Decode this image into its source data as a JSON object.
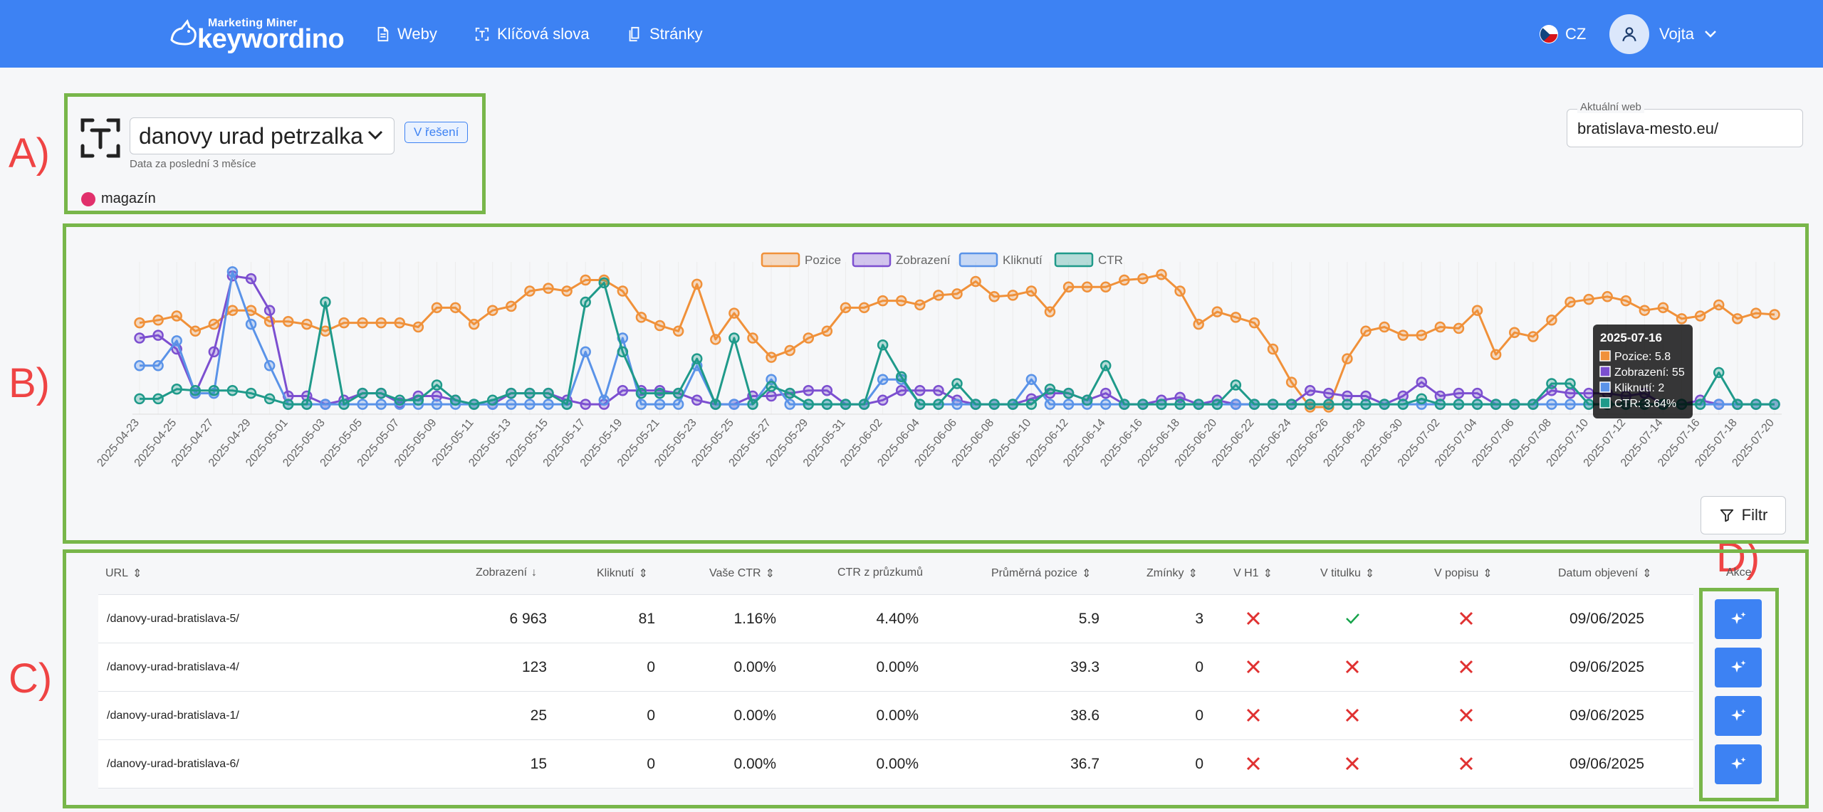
{
  "header": {
    "logo_small": "Marketing Miner",
    "logo_big": "keywordino",
    "nav": [
      {
        "label": "Weby",
        "icon": "document-icon"
      },
      {
        "label": "Klíčová slova",
        "icon": "keyword-icon"
      },
      {
        "label": "Stránky",
        "icon": "pages-icon"
      }
    ],
    "language": "CZ",
    "user": "Vojta"
  },
  "annotations": {
    "a": "A)",
    "b": "B)",
    "c": "C)",
    "d": "D)"
  },
  "keyword": {
    "selected": "danovy urad petrzalka",
    "status_badge": "V řešení",
    "note": "Data za poslední 3 měsíce",
    "tag": "magazín",
    "tag_color": "#e1306c"
  },
  "current_web": {
    "label": "Aktuální web",
    "value": "bratislava-mesto.eu/"
  },
  "filter_label": "Filtr",
  "chart_data": {
    "type": "line",
    "x": [
      "2025-04-23",
      "2025-04-24",
      "2025-04-25",
      "2025-04-26",
      "2025-04-27",
      "2025-04-28",
      "2025-04-29",
      "2025-04-30",
      "2025-05-01",
      "2025-05-02",
      "2025-05-03",
      "2025-05-04",
      "2025-05-05",
      "2025-05-06",
      "2025-05-07",
      "2025-05-08",
      "2025-05-09",
      "2025-05-10",
      "2025-05-11",
      "2025-05-12",
      "2025-05-13",
      "2025-05-14",
      "2025-05-15",
      "2025-05-16",
      "2025-05-17",
      "2025-05-18",
      "2025-05-19",
      "2025-05-20",
      "2025-05-21",
      "2025-05-22",
      "2025-05-23",
      "2025-05-24",
      "2025-05-25",
      "2025-05-26",
      "2025-05-27",
      "2025-05-28",
      "2025-05-29",
      "2025-05-30",
      "2025-05-31",
      "2025-06-01",
      "2025-06-02",
      "2025-06-03",
      "2025-06-04",
      "2025-06-05",
      "2025-06-06",
      "2025-06-07",
      "2025-06-08",
      "2025-06-09",
      "2025-06-10",
      "2025-06-11",
      "2025-06-12",
      "2025-06-13",
      "2025-06-14",
      "2025-06-15",
      "2025-06-16",
      "2025-06-17",
      "2025-06-18",
      "2025-06-19",
      "2025-06-20",
      "2025-06-21",
      "2025-06-22",
      "2025-06-23",
      "2025-06-24",
      "2025-06-25",
      "2025-06-26",
      "2025-06-27",
      "2025-06-28",
      "2025-06-29",
      "2025-06-30",
      "2025-07-01",
      "2025-07-02",
      "2025-07-03",
      "2025-07-04",
      "2025-07-05",
      "2025-07-06",
      "2025-07-07",
      "2025-07-08",
      "2025-07-09",
      "2025-07-10",
      "2025-07-11",
      "2025-07-12",
      "2025-07-13",
      "2025-07-14",
      "2025-07-15",
      "2025-07-16",
      "2025-07-17",
      "2025-07-18",
      "2025-07-19",
      "2025-07-20"
    ],
    "x_tick_labels": [
      "2025-04-23",
      "2025-04-25",
      "2025-04-27",
      "2025-04-29",
      "2025-05-01",
      "2025-05-03",
      "2025-05-05",
      "2025-05-07",
      "2025-05-09",
      "2025-05-11",
      "2025-05-13",
      "2025-05-15",
      "2025-05-17",
      "2025-05-19",
      "2025-05-21",
      "2025-05-23",
      "2025-05-25",
      "2025-05-27",
      "2025-05-29",
      "2025-05-31",
      "2025-06-02",
      "2025-06-04",
      "2025-06-06",
      "2025-06-08",
      "2025-06-10",
      "2025-06-12",
      "2025-06-14",
      "2025-06-16",
      "2025-06-18",
      "2025-06-20",
      "2025-06-22",
      "2025-06-24",
      "2025-06-26",
      "2025-06-28",
      "2025-06-30",
      "2025-07-02",
      "2025-07-04",
      "2025-07-06",
      "2025-07-08",
      "2025-07-10",
      "2025-07-12",
      "2025-07-14",
      "2025-07-16",
      "2025-07-18",
      "2025-07-20"
    ],
    "series": [
      {
        "name": "Pozice",
        "color": "#f0913a",
        "values": [
          61,
          63,
          66,
          55,
          60,
          70,
          70,
          62,
          62,
          60,
          55,
          61,
          61,
          61,
          61,
          58,
          72,
          72,
          60,
          70,
          73,
          84,
          86,
          84,
          92,
          92,
          84,
          65,
          59,
          55,
          89,
          49,
          68,
          50,
          36,
          41,
          50,
          55,
          72,
          72,
          77,
          77,
          74,
          81,
          82,
          91,
          80,
          81,
          84,
          69,
          87,
          87,
          87,
          92,
          93,
          96,
          84,
          60,
          69,
          65,
          61,
          42,
          18,
          0,
          0,
          35,
          55,
          58,
          52,
          52,
          58,
          57,
          70,
          38,
          54,
          51,
          63,
          76,
          78,
          80,
          77,
          70,
          72,
          64,
          66,
          74,
          64,
          68,
          67
        ]
      },
      {
        "name": "Zobrazení",
        "color": "#7c4fd0",
        "values": [
          50,
          52,
          42,
          10,
          40,
          95,
          93,
          70,
          8,
          8,
          2,
          5,
          10,
          10,
          3,
          8,
          8,
          5,
          2,
          2,
          10,
          10,
          10,
          5,
          2,
          2,
          12,
          12,
          12,
          10,
          5,
          2,
          2,
          8,
          8,
          10,
          12,
          12,
          2,
          2,
          5,
          12,
          12,
          12,
          5,
          2,
          2,
          2,
          6,
          10,
          10,
          5,
          10,
          2,
          2,
          5,
          7,
          2,
          5,
          2,
          2,
          2,
          2,
          12,
          10,
          8,
          8,
          2,
          8,
          18,
          8,
          10,
          10,
          2,
          2,
          2,
          12,
          10,
          10,
          10,
          8,
          10,
          2,
          2,
          5,
          2,
          2,
          2,
          2
        ]
      },
      {
        "name": "Kliknutí",
        "color": "#5a93e8",
        "values": [
          30,
          30,
          48,
          10,
          10,
          98,
          60,
          30,
          2,
          2,
          2,
          2,
          2,
          2,
          2,
          2,
          2,
          2,
          2,
          2,
          2,
          2,
          2,
          2,
          40,
          5,
          50,
          2,
          2,
          2,
          30,
          2,
          2,
          2,
          20,
          2,
          2,
          2,
          2,
          2,
          20,
          20,
          2,
          2,
          2,
          2,
          2,
          2,
          20,
          2,
          2,
          2,
          2,
          2,
          2,
          2,
          2,
          2,
          2,
          2,
          2,
          2,
          2,
          2,
          2,
          2,
          2,
          2,
          2,
          2,
          2,
          2,
          2,
          2,
          2,
          2,
          2,
          2,
          2,
          2,
          2,
          2,
          2,
          2,
          2,
          2,
          2,
          2,
          2
        ]
      },
      {
        "name": "CTR",
        "color": "#1f9a8a",
        "values": [
          6,
          6,
          13,
          12,
          12,
          12,
          10,
          6,
          2,
          2,
          76,
          2,
          10,
          10,
          5,
          5,
          16,
          5,
          2,
          5,
          10,
          10,
          10,
          2,
          76,
          90,
          40,
          10,
          10,
          10,
          35,
          2,
          50,
          2,
          15,
          10,
          2,
          2,
          2,
          2,
          45,
          22,
          2,
          2,
          17,
          2,
          2,
          2,
          2,
          13,
          10,
          5,
          30,
          2,
          2,
          2,
          2,
          2,
          2,
          16,
          2,
          2,
          2,
          2,
          2,
          2,
          2,
          2,
          2,
          6,
          2,
          2,
          2,
          2,
          2,
          2,
          17,
          17,
          2,
          2,
          2,
          2,
          2,
          2,
          2,
          25,
          2,
          2,
          2
        ]
      }
    ],
    "grid": "vertical",
    "legend": "top-center",
    "tooltip": {
      "title": "2025-07-16",
      "lines": [
        "Pozice: 5.8",
        "Zobrazení: 55",
        "Kliknutí: 2",
        "CTR: 3.64%"
      ]
    }
  },
  "table": {
    "headers": {
      "url": "URL",
      "impressions": "Zobrazení",
      "clicks": "Kliknutí",
      "your_ctr": "Vaše CTR",
      "survey_ctr": "CTR z průzkumů",
      "avg_position": "Průměrná pozice",
      "mentions": "Zmínky",
      "in_h1": "V H1",
      "in_title": "V titulku",
      "in_description": "V popisu",
      "discovered": "Datum objevení",
      "actions": "Akce"
    },
    "rows": [
      {
        "url": "/danovy-urad-bratislava-5/",
        "impressions": "6 963",
        "clicks": "81",
        "your_ctr": "1.16%",
        "survey_ctr": "4.40%",
        "avg_position": "5.9",
        "mentions": "3",
        "in_h1": false,
        "in_title": true,
        "in_description": false,
        "discovered": "09/06/2025"
      },
      {
        "url": "/danovy-urad-bratislava-4/",
        "impressions": "123",
        "clicks": "0",
        "your_ctr": "0.00%",
        "survey_ctr": "0.00%",
        "avg_position": "39.3",
        "mentions": "0",
        "in_h1": false,
        "in_title": false,
        "in_description": false,
        "discovered": "09/06/2025"
      },
      {
        "url": "/danovy-urad-bratislava-1/",
        "impressions": "25",
        "clicks": "0",
        "your_ctr": "0.00%",
        "survey_ctr": "0.00%",
        "avg_position": "38.6",
        "mentions": "0",
        "in_h1": false,
        "in_title": false,
        "in_description": false,
        "discovered": "09/06/2025"
      },
      {
        "url": "/danovy-urad-bratislava-6/",
        "impressions": "15",
        "clicks": "0",
        "your_ctr": "0.00%",
        "survey_ctr": "0.00%",
        "avg_position": "36.7",
        "mentions": "0",
        "in_h1": false,
        "in_title": false,
        "in_description": false,
        "discovered": "09/06/2025"
      }
    ]
  }
}
